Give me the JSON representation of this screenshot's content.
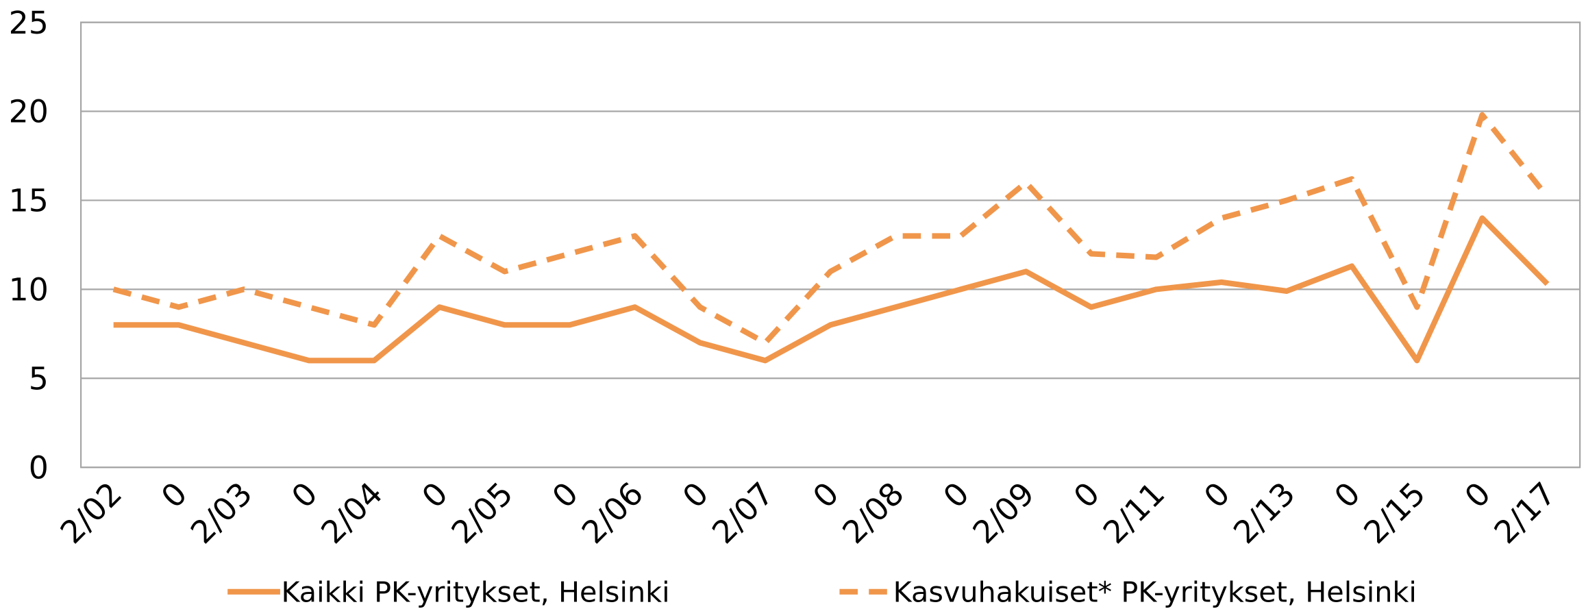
{
  "chart_data": {
    "type": "line",
    "categories": [
      "2/02",
      "0",
      "2/03",
      "0",
      "2/04",
      "0",
      "2/05",
      "0",
      "2/06",
      "0",
      "2/07",
      "0",
      "2/08",
      "0",
      "2/09",
      "0",
      "2/11",
      "0",
      "2/13",
      "0",
      "2/15",
      "0",
      "2/17"
    ],
    "series": [
      {
        "name": "Kaikki PK-yritykset, Helsinki",
        "color": "#f0964b",
        "dashed": false,
        "values": [
          8,
          8,
          7,
          6,
          6,
          9,
          8,
          8,
          9,
          7,
          6,
          8,
          9,
          10,
          11,
          9,
          10,
          10.4,
          9.9,
          11.3,
          6,
          14,
          10.3
        ]
      },
      {
        "name": "Kasvuhakuiset* PK-yritykset, Helsinki",
        "color": "#f0964b",
        "dashed": true,
        "values": [
          10,
          9,
          10,
          9,
          8,
          13,
          11,
          12,
          13,
          9,
          7,
          11,
          13,
          13,
          16,
          12,
          11.8,
          14,
          15,
          16.2,
          9,
          19.8,
          15.2
        ]
      }
    ],
    "ylim": [
      0,
      25
    ],
    "yticks": [
      0,
      5,
      10,
      15,
      20,
      25
    ],
    "grid": true,
    "legend": "bottom"
  }
}
